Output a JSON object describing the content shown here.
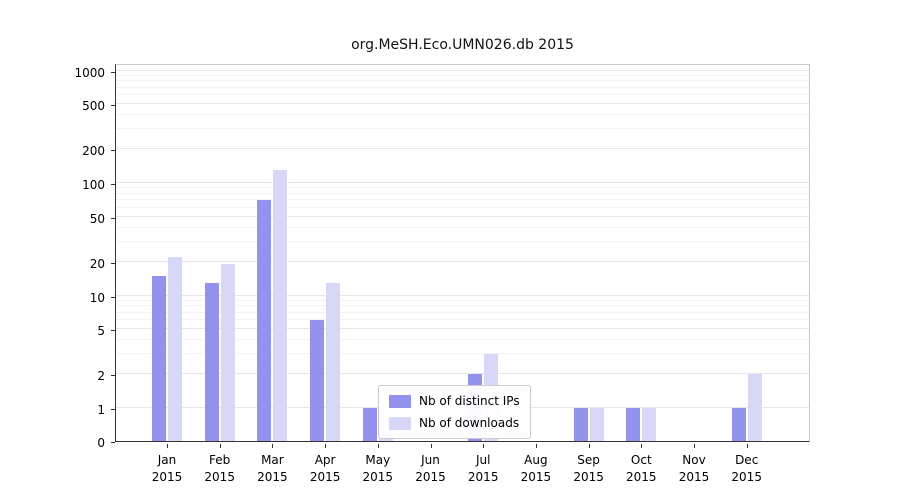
{
  "chart_data": {
    "type": "bar",
    "title": "org.MeSH.Eco.UMN026.db 2015",
    "categories": [
      "Jan 2015",
      "Feb 2015",
      "Mar 2015",
      "Apr 2015",
      "May 2015",
      "Jun 2015",
      "Jul 2015",
      "Aug 2015",
      "Sep 2015",
      "Oct 2015",
      "Nov 2015",
      "Dec 2015"
    ],
    "series": [
      {
        "name": "Nb of distinct IPs",
        "color": "#9393ee",
        "values": [
          15,
          13,
          70,
          6,
          1,
          0,
          2,
          0,
          1,
          1,
          0,
          1
        ]
      },
      {
        "name": "Nb of downloads",
        "color": "#d7d7f8",
        "values": [
          22,
          19,
          130,
          13,
          1,
          0,
          3,
          0,
          1,
          1,
          0,
          2
        ]
      }
    ],
    "yscale": "symlog",
    "yticks": [
      0,
      1,
      2,
      5,
      10,
      20,
      50,
      100,
      200,
      500,
      1000
    ],
    "ylim": [
      0,
      1000
    ],
    "grid": true,
    "legend_position": "lower center"
  }
}
